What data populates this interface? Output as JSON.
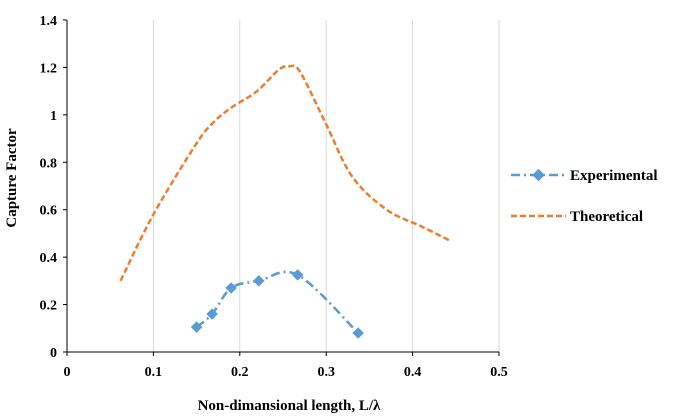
{
  "chart_data": {
    "type": "line",
    "title": "",
    "xlabel": "Non-dimansional length, L/λ",
    "ylabel": "Capture Factor",
    "xlim": [
      0,
      0.5
    ],
    "ylim": [
      0,
      1.4
    ],
    "x_ticks": [
      0,
      0.1,
      0.2,
      0.3,
      0.4,
      0.5
    ],
    "y_ticks": [
      0,
      0.2,
      0.4,
      0.6,
      0.8,
      1,
      1.2,
      1.4
    ],
    "x_tick_labels": [
      "0",
      "0.1",
      "0.2",
      "0.3",
      "0.4",
      "0.5"
    ],
    "y_tick_labels": [
      "0",
      "0.2",
      "0.4",
      "0.6",
      "0.8",
      "1",
      "1.2",
      "1.4"
    ],
    "grid": "vertical",
    "legend_position": "right",
    "series": [
      {
        "name": "Experimental",
        "color": "#5b9bd5",
        "line_style": "dash-dot",
        "marker": "diamond",
        "x": [
          0.15,
          0.168,
          0.19,
          0.222,
          0.267,
          0.337
        ],
        "y": [
          0.105,
          0.16,
          0.27,
          0.3,
          0.325,
          0.08
        ]
      },
      {
        "name": "Theoretical",
        "color": "#ed7d31",
        "line_style": "dash",
        "marker": "none",
        "x": [
          0.062,
          0.1,
          0.15,
          0.17,
          0.19,
          0.22,
          0.245,
          0.258,
          0.27,
          0.3,
          0.33,
          0.37,
          0.41,
          0.443
        ],
        "y": [
          0.3,
          0.58,
          0.88,
          0.97,
          1.03,
          1.1,
          1.19,
          1.205,
          1.18,
          0.96,
          0.74,
          0.6,
          0.53,
          0.47
        ]
      }
    ]
  }
}
